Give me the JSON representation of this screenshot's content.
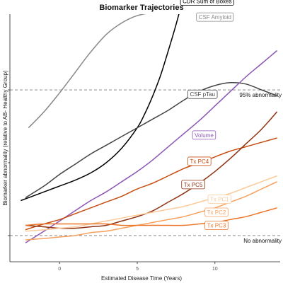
{
  "chart_data": {
    "type": "line",
    "title": "Biomarker Trajectories",
    "xlabel": "Estimated Disease Time (Years)",
    "ylabel": "Biomarker abnormality (relative to AB- Healthy Group)",
    "xlim": [
      -3.2,
      14.2
    ],
    "ylim": [
      -0.18,
      1.52
    ],
    "x_ticks": [
      0,
      5,
      10
    ],
    "x_tick_labels": [
      "0",
      "5",
      "10"
    ],
    "y_ticks": [
      0,
      0.5,
      1.0
    ],
    "grid": false,
    "legend": "none",
    "reference_lines": [
      {
        "y": 1.0,
        "label": "95% abnormality",
        "style": "dashed",
        "color": "#777777"
      },
      {
        "y": 0.0,
        "label": "No abnormality",
        "style": "dashed",
        "color": "#777777"
      }
    ],
    "series": [
      {
        "name": "CDR Sum of Boxes",
        "color": "#000000",
        "label_box": true,
        "label_x": 9.5,
        "label_y": 1.61,
        "x": [
          -2.5,
          -1,
          0,
          1,
          2,
          3,
          4,
          5,
          5.5,
          6,
          6.5,
          7,
          7.5,
          8,
          8.5
        ],
        "y": [
          0.24,
          0.3,
          0.34,
          0.38,
          0.43,
          0.5,
          0.6,
          0.74,
          0.84,
          0.96,
          1.1,
          1.27,
          1.45,
          1.65,
          1.86
        ]
      },
      {
        "name": "CSF Amyloid",
        "color": "#888888",
        "label_box": true,
        "label_x": 10.0,
        "label_y": 1.5,
        "x": [
          -2.0,
          -1,
          0,
          1,
          2,
          3,
          4,
          5,
          6,
          7,
          8,
          9,
          10,
          11,
          12
        ],
        "y": [
          0.74,
          0.85,
          0.98,
          1.12,
          1.26,
          1.38,
          1.46,
          1.51,
          1.53,
          1.54,
          1.55,
          1.56,
          1.57,
          1.58,
          1.59
        ]
      },
      {
        "name": "CSF pTau",
        "color": "#444444",
        "label_box": true,
        "label_x": 9.2,
        "label_y": 0.97,
        "x": [
          -2.2,
          -1,
          0,
          1,
          2,
          3,
          4,
          5,
          6,
          7,
          8,
          9,
          10,
          11,
          12,
          13,
          14
        ],
        "y": [
          0.26,
          0.34,
          0.42,
          0.49,
          0.56,
          0.62,
          0.68,
          0.74,
          0.8,
          0.86,
          0.93,
          0.99,
          1.03,
          1.05,
          1.04,
          1.0,
          0.96
        ]
      },
      {
        "name": "Volume",
        "color": "#8c55b5",
        "label_box": true,
        "label_x": 9.3,
        "label_y": 0.69,
        "x": [
          -2.2,
          -1,
          0,
          1,
          2,
          3,
          4,
          5,
          6,
          7,
          8,
          9,
          10,
          11,
          12,
          13,
          14
        ],
        "y": [
          -0.05,
          0.03,
          0.1,
          0.17,
          0.24,
          0.3,
          0.37,
          0.44,
          0.52,
          0.61,
          0.7,
          0.79,
          0.89,
          0.99,
          1.09,
          1.18,
          1.27
        ]
      },
      {
        "name": "Tx PC4",
        "color": "#c74d10",
        "label_box": true,
        "label_x": 9.0,
        "label_y": 0.51,
        "x": [
          -2.2,
          -1,
          0,
          1,
          2,
          3,
          4,
          5,
          6,
          7,
          8,
          9,
          10,
          11,
          12,
          13,
          14
        ],
        "y": [
          0.04,
          0.08,
          0.11,
          0.15,
          0.19,
          0.23,
          0.27,
          0.32,
          0.36,
          0.41,
          0.46,
          0.5,
          0.54,
          0.58,
          0.61,
          0.64,
          0.67
        ]
      },
      {
        "name": "Tx PC5",
        "color": "#8e3111",
        "label_box": true,
        "label_x": 8.6,
        "label_y": 0.35,
        "x": [
          -2.2,
          -1,
          0,
          1,
          2,
          3,
          4,
          5,
          6,
          7,
          8,
          9,
          10,
          11,
          12,
          13,
          14
        ],
        "y": [
          0.07,
          0.06,
          0.05,
          0.05,
          0.06,
          0.07,
          0.1,
          0.13,
          0.17,
          0.23,
          0.29,
          0.36,
          0.44,
          0.53,
          0.63,
          0.73,
          0.85
        ]
      },
      {
        "name": "Tx PC1",
        "color": "#fbc99a",
        "label_box": true,
        "label_x": 10.3,
        "label_y": 0.25,
        "x": [
          -2.2,
          -1,
          0,
          1,
          2,
          3,
          4,
          5,
          6,
          7,
          8,
          9,
          10,
          11,
          12,
          13,
          14
        ],
        "y": [
          0.03,
          0.04,
          0.05,
          0.06,
          0.08,
          0.1,
          0.12,
          0.14,
          0.16,
          0.18,
          0.2,
          0.23,
          0.26,
          0.29,
          0.33,
          0.37,
          0.41
        ]
      },
      {
        "name": "Tx PC2",
        "color": "#f6a05e",
        "label_box": true,
        "label_x": 10.1,
        "label_y": 0.16,
        "x": [
          -2.2,
          -1,
          0,
          1,
          2,
          3,
          4,
          5,
          6,
          7,
          8,
          9,
          10,
          11,
          12,
          13,
          14
        ],
        "y": [
          -0.03,
          -0.02,
          -0.01,
          0.0,
          0.02,
          0.03,
          0.05,
          0.07,
          0.09,
          0.11,
          0.13,
          0.16,
          0.19,
          0.23,
          0.27,
          0.32,
          0.37
        ]
      },
      {
        "name": "Tx PC3",
        "color": "#ec7427",
        "label_box": true,
        "label_x": 10.1,
        "label_y": 0.07,
        "x": [
          -2.2,
          -1,
          0,
          1,
          2,
          3,
          4,
          5,
          6,
          7,
          8,
          9,
          10,
          11,
          12,
          13,
          14
        ],
        "y": [
          0.07,
          0.08,
          0.08,
          0.08,
          0.08,
          0.08,
          0.07,
          0.07,
          0.07,
          0.07,
          0.07,
          0.08,
          0.09,
          0.11,
          0.13,
          0.16,
          0.19
        ]
      }
    ]
  }
}
